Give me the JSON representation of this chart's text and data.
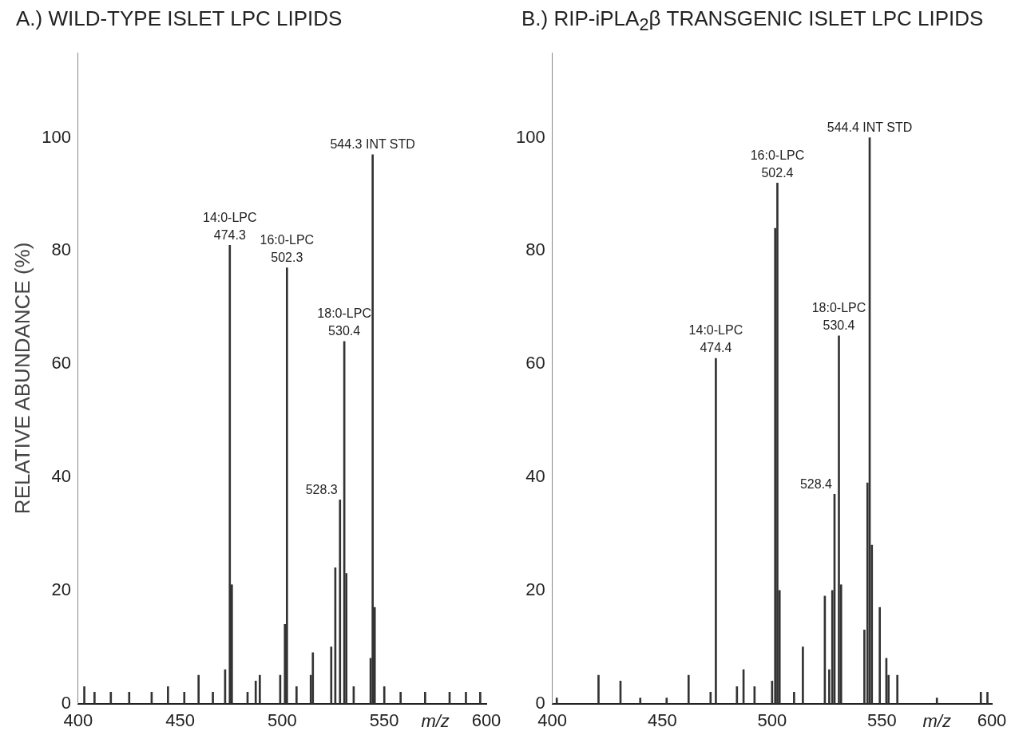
{
  "chart_data": [
    {
      "type": "bar",
      "title": "A.) WILD-TYPE ISLET LPC LIPIDS",
      "xlabel": "m/z",
      "ylabel": "RELATIVE ABUNDANCE (%)",
      "x": [
        403,
        408,
        416,
        425,
        436,
        444,
        452,
        459,
        466,
        472,
        474.3,
        475.3,
        483,
        487,
        489,
        499,
        501.3,
        502.3,
        507,
        514,
        515,
        524,
        526,
        528.3,
        530.4,
        531.4,
        535,
        543.3,
        544.3,
        545.3,
        550,
        558,
        570,
        582,
        590,
        597
      ],
      "series": [
        {
          "color": "#333333",
          "values": [
            3,
            2,
            2,
            2,
            2,
            3,
            2,
            5,
            2,
            6,
            81,
            21,
            2,
            4,
            5,
            5,
            14,
            77,
            3,
            5,
            9,
            10,
            24,
            36,
            64,
            23,
            3,
            8,
            97,
            17,
            3,
            2,
            2,
            2,
            2,
            2
          ]
        }
      ],
      "xlim": [
        400,
        600
      ],
      "xticks": [
        400,
        450,
        500,
        550,
        600
      ],
      "ylim": [
        0,
        115
      ],
      "yticks": [
        0,
        20,
        40,
        60,
        80,
        100
      ],
      "annotations": [
        {
          "text": "14:0-LPC",
          "x": 474.3,
          "y": 81
        },
        {
          "text": "474.3",
          "x": 474.3,
          "y": 81
        },
        {
          "text": "16:0-LPC",
          "x": 502.3,
          "y": 77
        },
        {
          "text": "502.3",
          "x": 502.3,
          "y": 77
        },
        {
          "text": "18:0-LPC",
          "x": 530.4,
          "y": 64
        },
        {
          "text": "530.4",
          "x": 530.4,
          "y": 64
        },
        {
          "text": "528.3",
          "x": 528.3,
          "y": 36
        },
        {
          "text": "544.3 INT STD",
          "x": 544.3,
          "y": 97
        }
      ],
      "grid": false,
      "legend": false
    },
    {
      "type": "bar",
      "title": "B.) RIP-iPLA$_{2}$β TRANSGENIC ISLET LPC LIPIDS",
      "xlabel": "m/z",
      "x": [
        402,
        421,
        431,
        440,
        452,
        462,
        472,
        474.4,
        484,
        487,
        492,
        500,
        501.4,
        502.4,
        503.4,
        510,
        514,
        524,
        526,
        527.4,
        528.4,
        530.4,
        531.4,
        542,
        543.4,
        544.4,
        545.4,
        549,
        552,
        553,
        557,
        575,
        595,
        598
      ],
      "series": [
        {
          "color": "#333333",
          "values": [
            1,
            5,
            4,
            1,
            1,
            5,
            2,
            61,
            3,
            6,
            3,
            4,
            84,
            92,
            20,
            2,
            10,
            19,
            6,
            20,
            37,
            65,
            21,
            13,
            39,
            100,
            28,
            17,
            8,
            5,
            5,
            1,
            2,
            2
          ]
        }
      ],
      "xlim": [
        400,
        600
      ],
      "xticks": [
        400,
        450,
        500,
        550,
        600
      ],
      "ylim": [
        0,
        115
      ],
      "yticks": [
        0,
        20,
        40,
        60,
        80,
        100
      ],
      "annotations": [
        {
          "text": "16:0-LPC",
          "x": 502.4,
          "y": 92
        },
        {
          "text": "502.4",
          "x": 502.4,
          "y": 92
        },
        {
          "text": "14:0-LPC",
          "x": 474.4,
          "y": 61
        },
        {
          "text": "474.4",
          "x": 474.4,
          "y": 61
        },
        {
          "text": "18:0-LPC",
          "x": 530.4,
          "y": 65
        },
        {
          "text": "530.4",
          "x": 530.4,
          "y": 65
        },
        {
          "text": "528.4",
          "x": 528.4,
          "y": 37
        },
        {
          "text": "544.4 INT STD",
          "x": 544.4,
          "y": 100
        }
      ],
      "grid": false,
      "legend": false
    }
  ]
}
